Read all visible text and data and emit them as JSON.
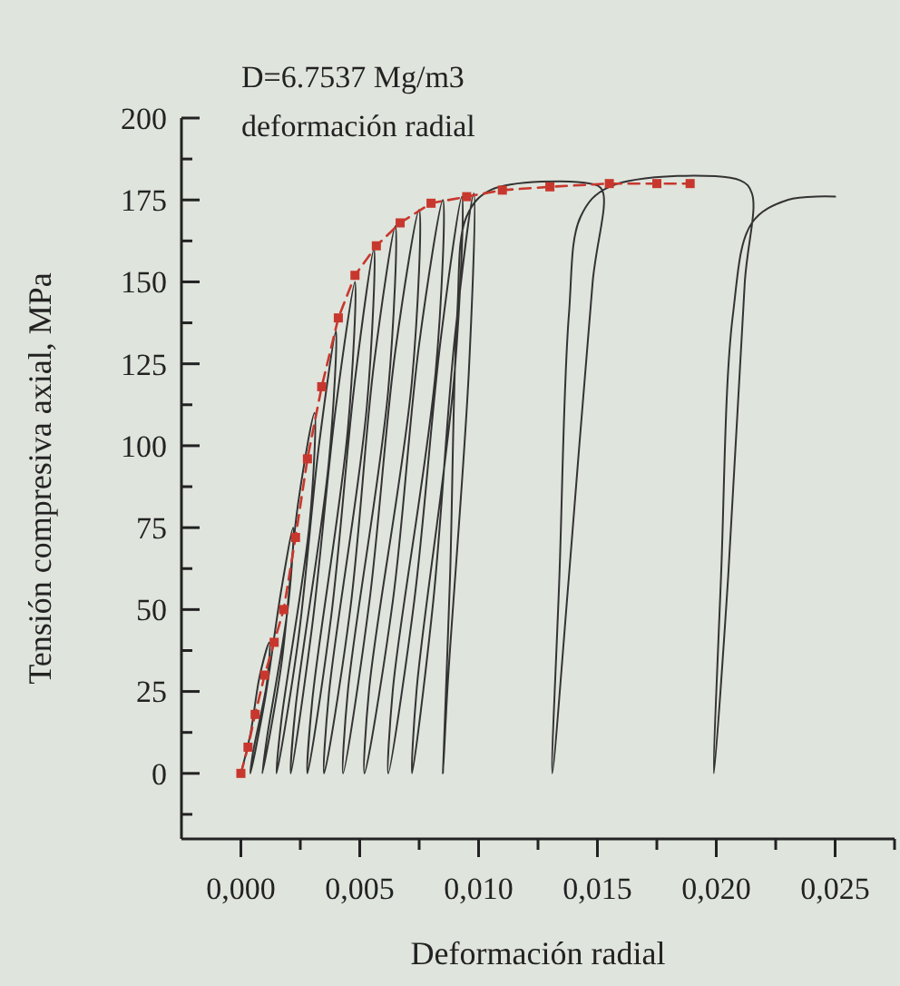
{
  "chart_data": {
    "type": "line",
    "xlabel": "Deformación radial",
    "ylabel": "Tensión compresiva axial, MPa",
    "annotations": [
      "D=6.7537 Mg/m3",
      "deformación radial"
    ],
    "xlim": [
      -0.0025,
      0.0275
    ],
    "xticks": [
      {
        "value": 0,
        "label": "0,000"
      },
      {
        "value": 0.0025,
        "label": null
      },
      {
        "value": 0.005,
        "label": "0,005"
      },
      {
        "value": 0.0075,
        "label": null
      },
      {
        "value": 0.01,
        "label": "0,010"
      },
      {
        "value": 0.0125,
        "label": null
      },
      {
        "value": 0.015,
        "label": "0,015"
      },
      {
        "value": 0.0175,
        "label": null
      },
      {
        "value": 0.02,
        "label": "0,020"
      },
      {
        "value": 0.0225,
        "label": null
      },
      {
        "value": 0.025,
        "label": "0,025"
      },
      {
        "value": 0.0275,
        "label": null
      }
    ],
    "ylim": [
      -20,
      200
    ],
    "yticks": [
      {
        "value": -12.5,
        "label": null
      },
      0,
      {
        "value": 12.5,
        "label": null
      },
      25,
      {
        "value": 37.5,
        "label": null
      },
      50,
      {
        "value": 62.5,
        "label": null
      },
      75,
      {
        "value": 87.5,
        "label": null
      },
      100,
      {
        "value": 112.5,
        "label": null
      },
      125,
      {
        "value": 137.5,
        "label": null
      },
      150,
      {
        "value": 162.5,
        "label": null
      },
      175,
      {
        "value": 187.5,
        "label": null
      },
      200
    ],
    "grid": false,
    "series": [
      {
        "color": "#333333",
        "marker": "none",
        "line_style": "solid",
        "x": [
          0,
          0.0004,
          0.0008,
          0.0012,
          0.0011,
          0.0005,
          0.0004,
          0.001,
          0.0017,
          0.0022,
          0.002,
          0.0011,
          0.0009,
          0.0017,
          0.0024,
          0.0031,
          0.0029,
          0.0017,
          0.0015,
          0.0024,
          0.0033,
          0.004,
          0.0037,
          0.0023,
          0.0021,
          0.003,
          0.004,
          0.0048,
          0.0045,
          0.003,
          0.0028,
          0.0038,
          0.0048,
          0.0056,
          0.0053,
          0.0037,
          0.0035,
          0.0046,
          0.0056,
          0.0065,
          0.0062,
          0.0045,
          0.0043,
          0.0054,
          0.0065,
          0.0075,
          0.0072,
          0.0054,
          0.0052,
          0.0064,
          0.0075,
          0.0085,
          0.0082,
          0.0064,
          0.0062,
          0.0073,
          0.0084,
          0.0093,
          0.009,
          0.0074,
          0.0072,
          0.0081,
          0.009,
          0.0098,
          0.0096,
          0.0087,
          0.0085,
          0.0088,
          0.0091,
          0.0095,
          0.0105,
          0.0147,
          0.0152,
          0.0148,
          0.0138,
          0.0131,
          0.0134,
          0.0138,
          0.0143,
          0.0155,
          0.021,
          0.0215,
          0.0212,
          0.0205,
          0.0199,
          0.0202,
          0.0207,
          0.0215,
          0.023,
          0.025
        ],
        "values": [
          0,
          12,
          30,
          40,
          28,
          6,
          0,
          22,
          56,
          75,
          52,
          11,
          0,
          33,
          82,
          110,
          77,
          16,
          0,
          40,
          101,
          135,
          95,
          20,
          0,
          45,
          112,
          150,
          105,
          22,
          0,
          48,
          120,
          160,
          112,
          24,
          0,
          50,
          125,
          167,
          117,
          25,
          0,
          52,
          129,
          172,
          120,
          26,
          0,
          53,
          131,
          175,
          123,
          26,
          0,
          53,
          132,
          176,
          123,
          26,
          0,
          53,
          133,
          177,
          124,
          27,
          0,
          60,
          140,
          170,
          178,
          180,
          178,
          150,
          60,
          0,
          60,
          140,
          170,
          179,
          181,
          177,
          150,
          60,
          0,
          60,
          140,
          168,
          175,
          176
        ]
      },
      {
        "color": "#c8372d",
        "marker": "square",
        "line_style": "dashed",
        "x": [
          0,
          0.0003,
          0.0006,
          0.001,
          0.0014,
          0.0018,
          0.0023,
          0.0028,
          0.0034,
          0.0041,
          0.0048,
          0.0057,
          0.0067,
          0.008,
          0.0095,
          0.011,
          0.013,
          0.0155,
          0.0175,
          0.0189
        ],
        "values": [
          0,
          8,
          18,
          30,
          40,
          50,
          72,
          96,
          118,
          139,
          152,
          161,
          168,
          174,
          176,
          178,
          179,
          180,
          180,
          180
        ]
      }
    ]
  }
}
